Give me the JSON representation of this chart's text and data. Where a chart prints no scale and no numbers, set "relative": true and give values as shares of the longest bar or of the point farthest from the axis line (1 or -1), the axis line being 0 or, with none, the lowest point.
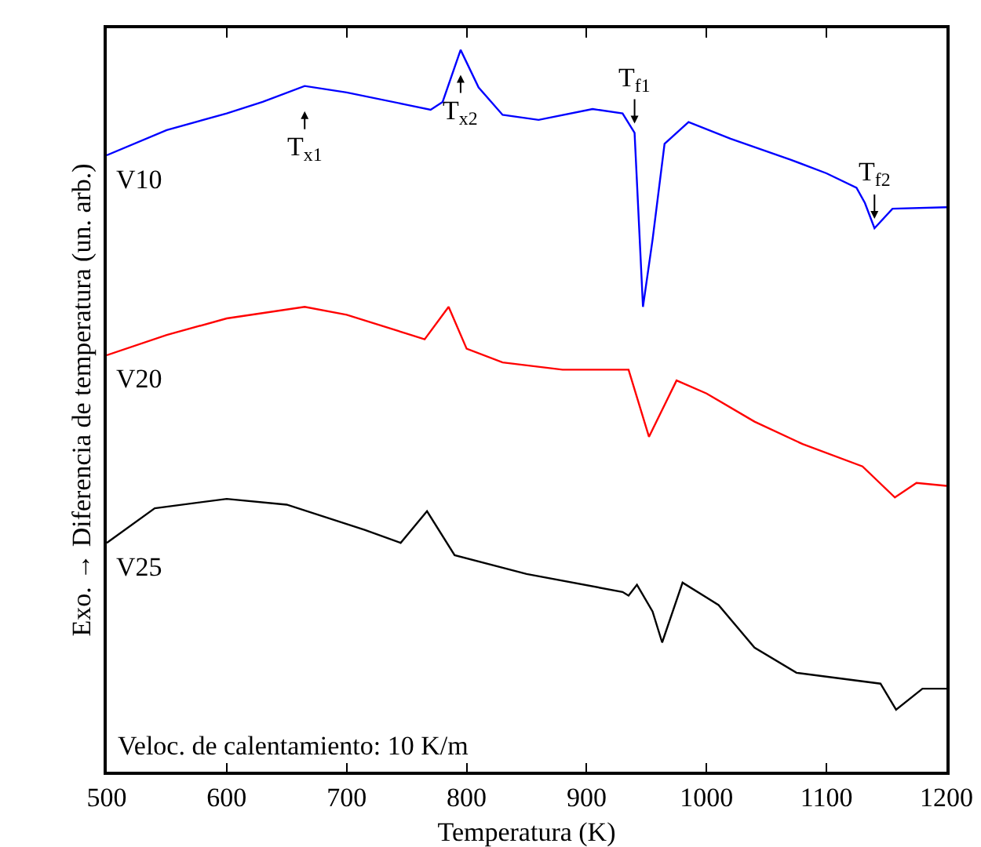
{
  "chart_data": {
    "type": "line",
    "relative": true,
    "xlabel": "Temperatura (K)",
    "ylabel": "Exo. → Diferencia de temperatura (un. arb.)",
    "xlim": [
      500,
      1200
    ],
    "xticks": [
      500,
      600,
      700,
      800,
      900,
      1000,
      1100,
      1200
    ],
    "tick_labels": "x",
    "grid": false,
    "legend": false,
    "marker": "none",
    "line_style": "solid",
    "series": [
      {
        "name": "V10",
        "color": "#0000ff",
        "x": [
          500,
          550,
          600,
          630,
          665,
          700,
          750,
          770,
          780,
          795,
          810,
          830,
          860,
          905,
          930,
          940,
          947,
          955,
          965,
          985,
          1020,
          1070,
          1100,
          1125,
          1132,
          1140,
          1155,
          1200
        ],
        "values": [
          0.854,
          0.889,
          0.912,
          0.928,
          0.95,
          0.941,
          0.924,
          0.917,
          0.928,
          1.0,
          0.948,
          0.91,
          0.903,
          0.918,
          0.912,
          0.885,
          0.644,
          0.737,
          0.87,
          0.9,
          0.877,
          0.848,
          0.829,
          0.809,
          0.788,
          0.753,
          0.78,
          0.782
        ]
      },
      {
        "name": "V20",
        "color": "#ff0000",
        "x": [
          500,
          550,
          600,
          665,
          700,
          750,
          765,
          785,
          800,
          830,
          880,
          935,
          952,
          975,
          1000,
          1040,
          1080,
          1130,
          1157,
          1175,
          1200
        ],
        "values": [
          0.577,
          0.605,
          0.628,
          0.644,
          0.633,
          0.607,
          0.599,
          0.644,
          0.586,
          0.567,
          0.557,
          0.557,
          0.464,
          0.542,
          0.524,
          0.485,
          0.454,
          0.423,
          0.38,
          0.4,
          0.396
        ]
      },
      {
        "name": "V25",
        "color": "#000000",
        "x": [
          500,
          540,
          600,
          650,
          715,
          745,
          767,
          790,
          850,
          930,
          935,
          942,
          955,
          963,
          980,
          1010,
          1040,
          1075,
          1145,
          1158,
          1180,
          1200
        ],
        "values": [
          0.317,
          0.365,
          0.378,
          0.37,
          0.335,
          0.317,
          0.361,
          0.3,
          0.274,
          0.249,
          0.244,
          0.259,
          0.222,
          0.179,
          0.262,
          0.231,
          0.172,
          0.137,
          0.122,
          0.086,
          0.115,
          0.115
        ]
      }
    ],
    "annotations": [
      {
        "text": "T$_{x1}$",
        "x": 665,
        "y": 0.95
      },
      {
        "text": "T$_{x2}$",
        "x": 795,
        "y": 1.0
      },
      {
        "text": "T$_{f1}$",
        "x": 940,
        "y": 0.885
      },
      {
        "text": "T$_{f2}$",
        "x": 1140,
        "y": 0.753
      },
      "Veloc. de calentamiento: 10 K/m"
    ]
  }
}
